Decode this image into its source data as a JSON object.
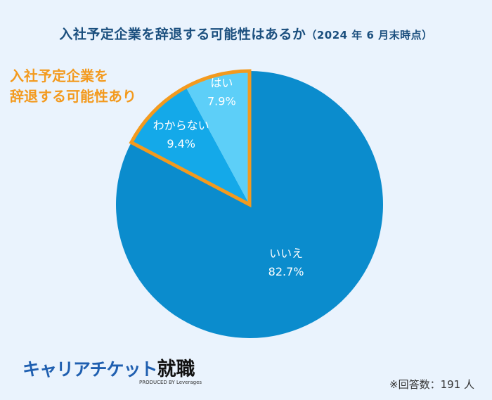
{
  "chart_data": {
    "type": "pie",
    "title": "入社予定企業を辞退する可能性はあるか",
    "subtitle": "（2024 年 6 月末時点）",
    "slices": [
      {
        "label": "いいえ",
        "value": 82.7,
        "value_label": "82.7%",
        "color": "#0b8ccd"
      },
      {
        "label": "わからない",
        "value": 9.4,
        "value_label": "9.4%",
        "color": "#14a9e9"
      },
      {
        "label": "はい",
        "value": 7.9,
        "value_label": "7.9%",
        "color": "#5dcff8"
      }
    ],
    "start": "top",
    "direction": "clockwise",
    "highlight": {
      "text_line1": "入社予定企業を",
      "text_line2": "辞退する可能性あり",
      "slices": [
        "わからない",
        "はい"
      ],
      "color": "#f39a1e"
    },
    "note": "※回答数：191 人"
  },
  "logo": {
    "brand": "キャリアチケット",
    "brand2": "就職",
    "produced_by": "PRODUCED BY Leverages"
  }
}
